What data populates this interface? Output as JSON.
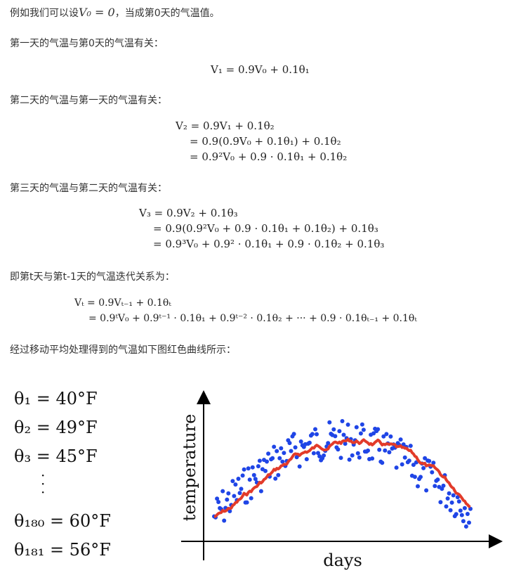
{
  "intro": {
    "prefix": "例如我们可以设",
    "formula": "V₀ = 0",
    "suffix": "，当成第0天的气温值。"
  },
  "day1": {
    "text": "第一天的气温与第0天的气温有关：",
    "equation": "V₁ = 0.9V₀ + 0.1θ₁"
  },
  "day2": {
    "text": "第二天的气温与第一天的气温有关：",
    "lines": [
      "V₂ = 0.9V₁ + 0.1θ₂",
      "= 0.9(0.9V₀ + 0.1θ₁) + 0.1θ₂",
      "= 0.9²V₀ + 0.9 · 0.1θ₁ + 0.1θ₂"
    ]
  },
  "day3": {
    "text": "第三天的气温与第二天的气温有关：",
    "lines": [
      "V₃ = 0.9V₂ + 0.1θ₃",
      "= 0.9(0.9²V₀ + 0.9 · 0.1θ₁ + 0.1θ₂) + 0.1θ₃",
      "= 0.9³V₀ + 0.9² · 0.1θ₁ + 0.9 · 0.1θ₂ + 0.1θ₃"
    ]
  },
  "dayt": {
    "text": "即第t天与第t-1天的气温迭代关系为：",
    "lines": [
      "Vₜ = 0.9Vₜ₋₁ + 0.1θₜ",
      "= 0.9ᵗV₀ + 0.9ᵗ⁻¹ · 0.1θ₁ + 0.9ᵗ⁻² · 0.1θ₂ + ··· + 0.9 · 0.1θₜ₋₁ + 0.1θₜ"
    ]
  },
  "caption": "经过移动平均处理得到的气温如下图红色曲线所示：",
  "thetas": [
    {
      "label": "θ₁ = 40°F"
    },
    {
      "label": "θ₂ = 49°F"
    },
    {
      "label": "θ₃ = 45°F"
    },
    {
      "label": "θ₁₈₀ = 60°F"
    },
    {
      "label": "θ₁₈₁ = 56°F"
    }
  ],
  "figure": {
    "ylabel": "temperature",
    "xlabel": "days",
    "dot_color": "#1f45e6",
    "line_color": "#e23b2a"
  }
}
